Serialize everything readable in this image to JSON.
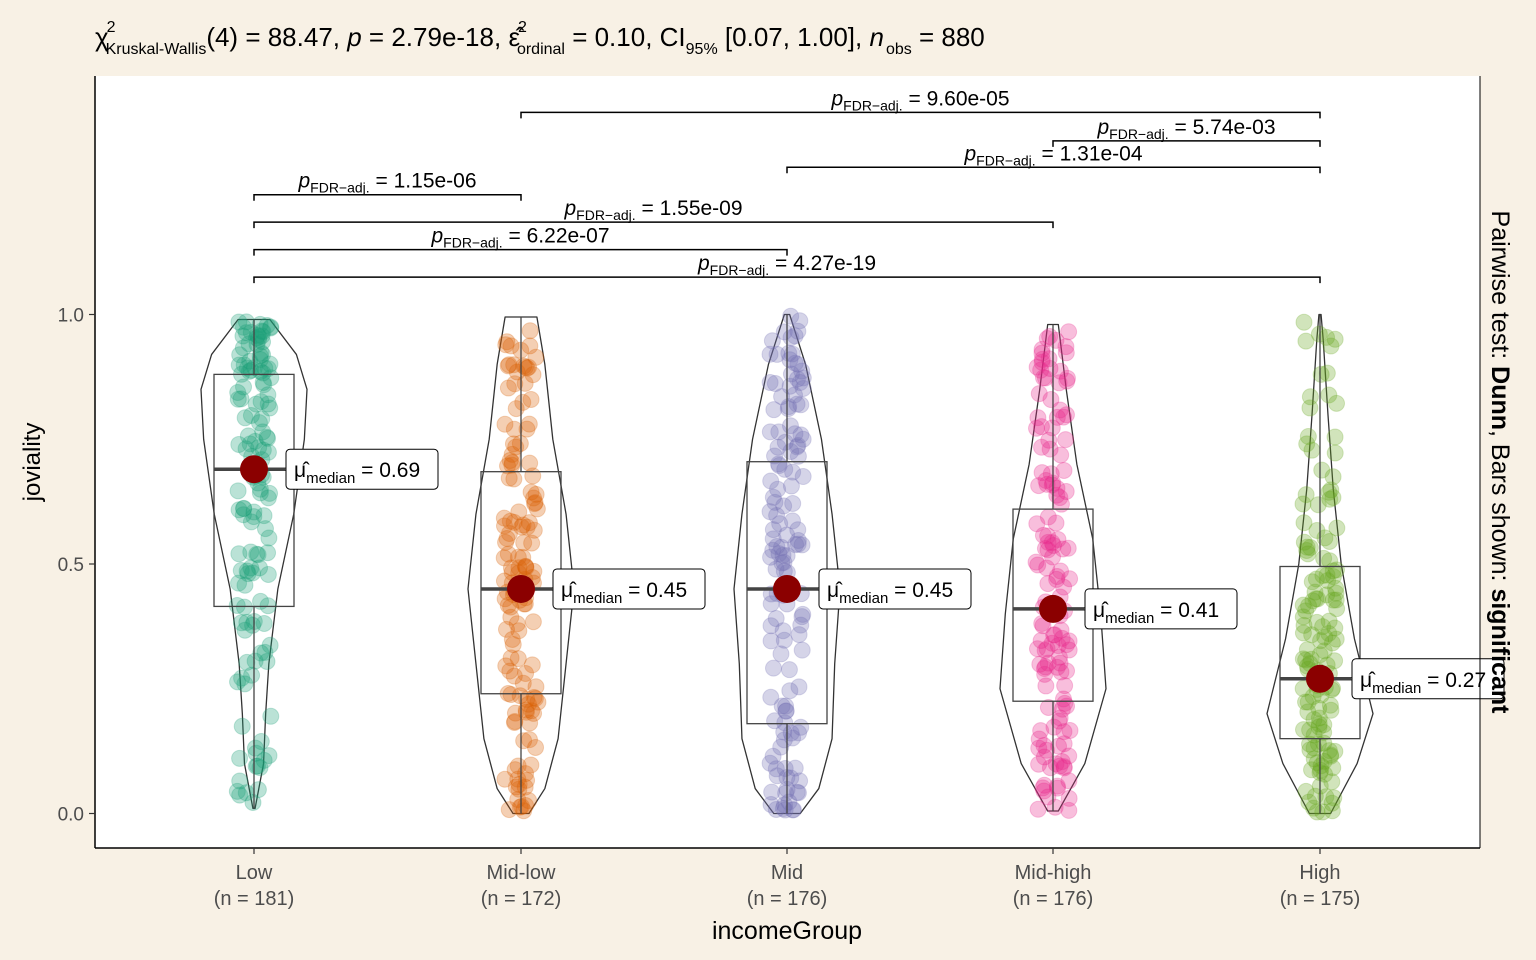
{
  "chart_data": {
    "type": "violin",
    "subtitle": {
      "chi": "χ",
      "chi_sup": "2",
      "test_sub": "Kruskal-Wallis",
      "df_stat": "(4) = 88.47, ",
      "p_sym": "p",
      "p_val": " = 2.79e-18, ",
      "eps": "ε̂",
      "eps_sup": "2",
      "eps_sub": "ordinal",
      "eps_val": " = 0.10, CI",
      "ci_sub": "95%",
      "ci_val": " [0.07, 1.00], ",
      "n_sym": "n",
      "n_sub": "obs",
      "n_val": " = 880"
    },
    "ylabel": "joviality",
    "xlabel": "incomeGroup",
    "ylim": [
      -0.07,
      1.55
    ],
    "yticks": [
      "0.0",
      "0.5",
      "1.0"
    ],
    "right_label": {
      "prefix": "Pairwise test: ",
      "test": "Dunn",
      "middle": ", Bars shown: ",
      "bars": "significant"
    },
    "groups": [
      {
        "name": "Low",
        "n_label": "(n = 181)",
        "color": "#1b9e77",
        "q1": 0.415,
        "median": 0.69,
        "q3": 0.88,
        "min": 0.01,
        "max": 0.99,
        "median_label": "0.69"
      },
      {
        "name": "Mid-low",
        "n_label": "(n = 172)",
        "color": "#d95f02",
        "q1": 0.24,
        "median": 0.45,
        "q3": 0.685,
        "min": 0.0,
        "max": 0.995,
        "median_label": "0.45"
      },
      {
        "name": "Mid",
        "n_label": "(n = 176)",
        "color": "#7570b3",
        "q1": 0.18,
        "median": 0.45,
        "q3": 0.705,
        "min": 0.0,
        "max": 1.0,
        "median_label": "0.45"
      },
      {
        "name": "Mid-high",
        "n_label": "(n = 176)",
        "color": "#e7298a",
        "q1": 0.225,
        "median": 0.41,
        "q3": 0.61,
        "min": 0.005,
        "max": 0.98,
        "median_label": "0.41"
      },
      {
        "name": "High",
        "n_label": "(n = 175)",
        "color": "#66a61e",
        "q1": 0.15,
        "median": 0.27,
        "q3": 0.495,
        "min": 0.0,
        "max": 1.0,
        "median_label": "0.27"
      }
    ],
    "median_stat": {
      "mu": "μ̂",
      "sub": "median",
      "eq": " = "
    },
    "pairwise": [
      {
        "from": 0,
        "to": 4,
        "y": 1.075,
        "p_text": " = 4.27e-19"
      },
      {
        "from": 0,
        "to": 2,
        "y": 1.13,
        "p_text": " = 6.22e-07"
      },
      {
        "from": 0,
        "to": 3,
        "y": 1.185,
        "p_text": " = 1.55e-09"
      },
      {
        "from": 0,
        "to": 1,
        "y": 1.24,
        "p_text": " = 1.15e-06"
      },
      {
        "from": 2,
        "to": 4,
        "y": 1.295,
        "p_text": " = 1.31e-04"
      },
      {
        "from": 3,
        "to": 4,
        "y": 1.348,
        "p_text": " = 5.74e-03"
      },
      {
        "from": 1,
        "to": 4,
        "y": 1.405,
        "p_text": " = 9.60e-05"
      }
    ],
    "pair_label": {
      "p": "p",
      "sub": "FDR−adj."
    }
  }
}
